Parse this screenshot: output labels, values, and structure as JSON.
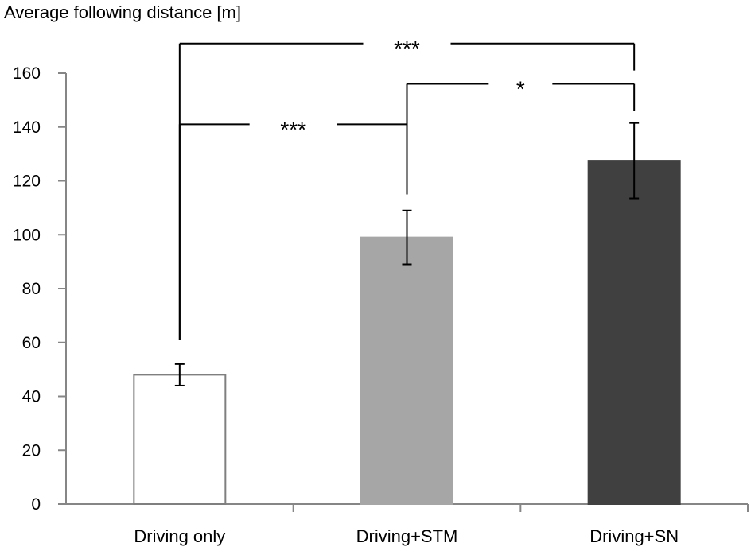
{
  "chart_data": {
    "type": "bar",
    "title": "",
    "xlabel": "",
    "ylabel": "Average following distance [m]",
    "ylim": [
      0,
      160
    ],
    "yticks": [
      0,
      20,
      40,
      60,
      80,
      100,
      120,
      140,
      160
    ],
    "grid": false,
    "categories": [
      "Driving only",
      "Driving+STM",
      "Driving+SN"
    ],
    "values": [
      48,
      99,
      127.5
    ],
    "error": [
      4,
      10,
      14
    ],
    "colors": {
      "bar_fills": [
        "#ffffff",
        "#a6a6a6",
        "#404040"
      ],
      "bar_strokes": [
        "#7f7f7f",
        "#a6a6a6",
        "#404040"
      ],
      "axis": "#868686",
      "lines": "#000000"
    },
    "significance": [
      {
        "from": 2,
        "to": 0,
        "label": "***",
        "line_y": 171,
        "from_end": 161,
        "to_end": 61
      },
      {
        "from": 2,
        "to": 1,
        "label": "*",
        "line_y": 156,
        "from_end": 146,
        "to_end": 115
      },
      {
        "from": 1,
        "to": 0,
        "label": "***",
        "line_y": 141,
        "from_end": 115,
        "to_end": 61
      }
    ]
  }
}
